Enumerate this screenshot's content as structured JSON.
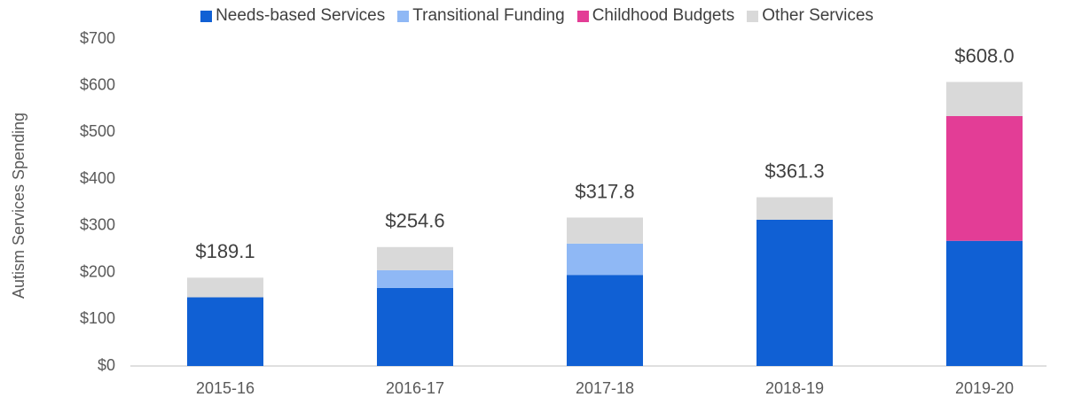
{
  "chart_data": {
    "type": "stacked_bar",
    "y_axis_label": "Autism Services Spending",
    "categories": [
      "2015-16",
      "2016-17",
      "2017-18",
      "2018-19",
      "2019-20"
    ],
    "series": [
      {
        "name": "Needs-based Services",
        "color": "#1060d4",
        "values": [
          147,
          167,
          195,
          313,
          268
        ]
      },
      {
        "name": "Transitional Funding",
        "color": "#8fb8f5",
        "values": [
          null,
          38,
          67,
          null,
          null
        ]
      },
      {
        "name": "Childhood Budgets",
        "color": "#e33d96",
        "values": [
          null,
          null,
          null,
          null,
          267
        ]
      },
      {
        "name": "Other Services",
        "color": "#d9d9d9",
        "values": [
          42.1,
          49.6,
          55.8,
          48.3,
          73
        ]
      }
    ],
    "totals": [
      189.1,
      254.6,
      317.8,
      361.3,
      608.0
    ],
    "total_labels": [
      "$189.1",
      "$254.6",
      "$317.8",
      "$361.3",
      "$608.0"
    ],
    "ylim": [
      0,
      700
    ],
    "yticks": [
      {
        "value": 0,
        "label": "$0"
      },
      {
        "value": 100,
        "label": "$100"
      },
      {
        "value": 200,
        "label": "$200"
      },
      {
        "value": 300,
        "label": "$300"
      },
      {
        "value": 400,
        "label": "$400"
      },
      {
        "value": 500,
        "label": "$500"
      },
      {
        "value": 600,
        "label": "$600"
      },
      {
        "value": 700,
        "label": "$700"
      }
    ],
    "legend": "top",
    "grid": false
  }
}
